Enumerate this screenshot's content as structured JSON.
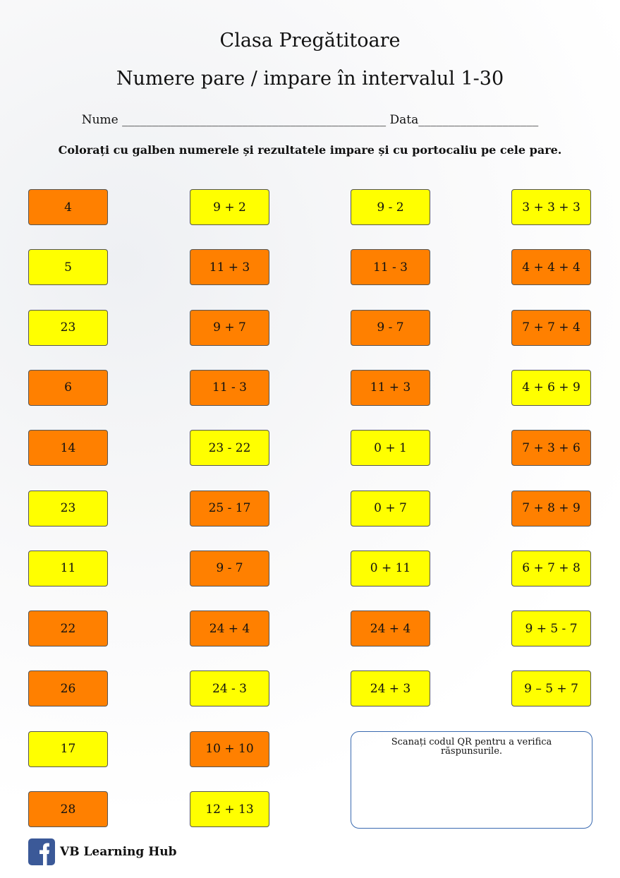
{
  "header": {
    "title": "Clasa Pregătitoare",
    "subtitle": "Numere pare / impare în intervalul 1-30",
    "name_field": "Nume ____________________________________________",
    "date_field": "Data____________________"
  },
  "instruction": "Colorați cu galben numerele și rezultatele impare și cu portocaliu pe cele pare.",
  "colors": {
    "odd": "#ffff00",
    "even": "#ff8000"
  },
  "columns": [
    [
      {
        "text": "4",
        "color": "even"
      },
      {
        "text": "5",
        "color": "odd"
      },
      {
        "text": "23",
        "color": "odd"
      },
      {
        "text": "6",
        "color": "even"
      },
      {
        "text": "14",
        "color": "even"
      },
      {
        "text": "23",
        "color": "odd"
      },
      {
        "text": "11",
        "color": "odd"
      },
      {
        "text": "22",
        "color": "even"
      },
      {
        "text": "26",
        "color": "even"
      },
      {
        "text": "17",
        "color": "odd"
      },
      {
        "text": "28",
        "color": "even"
      }
    ],
    [
      {
        "text": "9 + 2",
        "color": "odd"
      },
      {
        "text": "11 + 3",
        "color": "even"
      },
      {
        "text": "9 + 7",
        "color": "even"
      },
      {
        "text": "11 - 3",
        "color": "even"
      },
      {
        "text": "23 - 22",
        "color": "odd"
      },
      {
        "text": "25 - 17",
        "color": "even"
      },
      {
        "text": "9 - 7",
        "color": "even"
      },
      {
        "text": "24 + 4",
        "color": "even"
      },
      {
        "text": "24 - 3",
        "color": "odd"
      },
      {
        "text": "10 + 10",
        "color": "even"
      },
      {
        "text": "12 + 13",
        "color": "odd"
      }
    ],
    [
      {
        "text": "9 - 2",
        "color": "odd"
      },
      {
        "text": "11 - 3",
        "color": "even"
      },
      {
        "text": "9 - 7",
        "color": "even"
      },
      {
        "text": "11 + 3",
        "color": "even"
      },
      {
        "text": "0 + 1",
        "color": "odd"
      },
      {
        "text": "0 + 7",
        "color": "odd"
      },
      {
        "text": "0 + 11",
        "color": "odd"
      },
      {
        "text": "24 + 4",
        "color": "even"
      },
      {
        "text": "24 + 3",
        "color": "odd"
      }
    ],
    [
      {
        "text": "3 + 3 + 3",
        "color": "odd"
      },
      {
        "text": "4 + 4 + 4",
        "color": "even"
      },
      {
        "text": "7 + 7 + 4",
        "color": "even"
      },
      {
        "text": "4 + 6 + 9",
        "color": "odd"
      },
      {
        "text": "7 + 3 + 6",
        "color": "even"
      },
      {
        "text": "7 + 8 + 9",
        "color": "even"
      },
      {
        "text": "6 + 7 + 8",
        "color": "odd"
      },
      {
        "text": "9 + 5 - 7",
        "color": "odd"
      },
      {
        "text": "9 – 5 + 7",
        "color": "odd"
      }
    ]
  ],
  "qr_box": {
    "text": "Scanați codul QR pentru a verifica răspunsurile."
  },
  "footer": {
    "brand": "VB Learning Hub"
  }
}
